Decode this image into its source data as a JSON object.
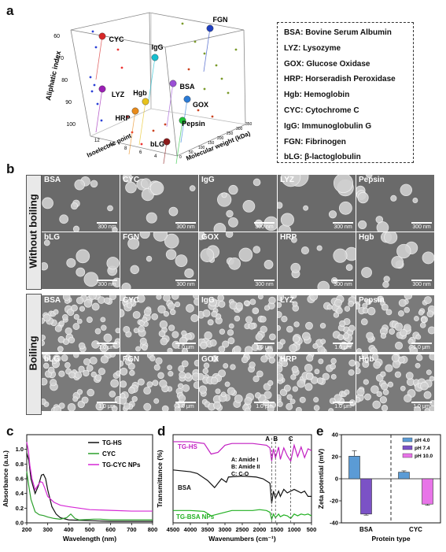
{
  "panel_letters": {
    "a": "a",
    "b": "b",
    "c": "c",
    "d": "d",
    "e": "e"
  },
  "panel_a": {
    "y_axis_label": "Aliphatic index",
    "x_axis_label": "Isoelectric point",
    "z_axis_label": "Molecular weight (kDa)",
    "y_ticks": [
      "60",
      "70",
      "80",
      "90",
      "100"
    ],
    "x_ticks": [
      "12",
      "10",
      "8",
      "6",
      "4"
    ],
    "z_ticks": [
      "0",
      "50",
      "100",
      "150",
      "200",
      "250",
      "300",
      "350"
    ],
    "proteins": [
      {
        "label": "CYC",
        "color": "#d62728"
      },
      {
        "label": "IgG",
        "color": "#17becf"
      },
      {
        "label": "FGN",
        "color": "#1f3fbf"
      },
      {
        "label": "LYZ",
        "color": "#9b1fb5"
      },
      {
        "label": "BSA",
        "color": "#9b4fd6"
      },
      {
        "label": "Hgb",
        "color": "#e8c21a"
      },
      {
        "label": "HRP",
        "color": "#e88a1a"
      },
      {
        "label": "GOX",
        "color": "#2b7bd6"
      },
      {
        "label": "Pepsin",
        "color": "#22c43a"
      },
      {
        "label": "bLG",
        "color": "#8b1a1a"
      }
    ]
  },
  "legend": [
    "BSA: Bovine Serum Albumin",
    "LYZ: Lysozyme",
    "GOX: Glucose Oxidase",
    "HRP: Horseradish Peroxidase",
    "Hgb: Hemoglobin",
    "CYC: Cytochrome C",
    "IgG: Immunoglobulin G",
    "FGN: Fibrinogen",
    "bLG: β-lactoglobulin"
  ],
  "panel_b": {
    "group_without": "Without boiling",
    "group_boiling": "Boiling",
    "without_row1": [
      {
        "name": "BSA",
        "scale": "300 nm"
      },
      {
        "name": "CYC",
        "scale": "300 nm"
      },
      {
        "name": "IgG",
        "scale": "300 nm"
      },
      {
        "name": "LYZ",
        "scale": "300 nm"
      },
      {
        "name": "Pepsin",
        "scale": "300 nm"
      }
    ],
    "without_row2": [
      {
        "name": "bLG",
        "scale": "300 nm"
      },
      {
        "name": "FGN",
        "scale": "300 nm"
      },
      {
        "name": "GOX",
        "scale": "300 nm"
      },
      {
        "name": "HRP",
        "scale": "300 nm"
      },
      {
        "name": "Hgb",
        "scale": "300 nm"
      }
    ],
    "boiling_row1": [
      {
        "name": "BSA",
        "scale": "1.0 μm"
      },
      {
        "name": "CYC",
        "scale": "1.0 μm"
      },
      {
        "name": "IgG",
        "scale": "1.0 μm"
      },
      {
        "name": "LYZ",
        "scale": "1.0 μm"
      },
      {
        "name": "Pepsin",
        "scale": "1.0 μm"
      }
    ],
    "boiling_row2": [
      {
        "name": "bLG",
        "scale": "1.0 μm"
      },
      {
        "name": "FGN",
        "scale": "1.0 μm"
      },
      {
        "name": "GOX",
        "scale": "1.0 μm"
      },
      {
        "name": "HRP",
        "scale": "1.0 μm"
      },
      {
        "name": "Hgb",
        "scale": "1.0 μm"
      }
    ]
  },
  "chart_data": [
    {
      "id": "c",
      "type": "line",
      "xlabel": "Wavelength (nm)",
      "ylabel": "Absorbance (a.u.)",
      "xlim": [
        200,
        800
      ],
      "ylim": [
        0,
        1.2
      ],
      "xticks": [
        200,
        300,
        400,
        500,
        600,
        700,
        800
      ],
      "yticks": [
        0.0,
        0.2,
        0.4,
        0.6,
        0.8,
        1.0
      ],
      "series": [
        {
          "name": "TG-HS",
          "color": "#111111",
          "x": [
            200,
            210,
            220,
            240,
            255,
            270,
            280,
            290,
            300,
            320,
            340,
            360,
            400,
            500,
            600,
            700,
            800
          ],
          "y": [
            0.95,
            0.85,
            0.6,
            0.4,
            0.5,
            0.65,
            0.66,
            0.6,
            0.45,
            0.22,
            0.12,
            0.07,
            0.04,
            0.03,
            0.02,
            0.02,
            0.02
          ]
        },
        {
          "name": "CYC",
          "color": "#2ca02c",
          "x": [
            200,
            210,
            220,
            240,
            260,
            280,
            300,
            330,
            360,
            390,
            410,
            430,
            450,
            520,
            550,
            600,
            700,
            800
          ],
          "y": [
            0.7,
            0.5,
            0.32,
            0.15,
            0.11,
            0.1,
            0.08,
            0.06,
            0.05,
            0.07,
            0.12,
            0.06,
            0.04,
            0.05,
            0.05,
            0.04,
            0.04,
            0.04
          ]
        },
        {
          "name": "TG-CYC NPs",
          "color": "#d628d6",
          "x": [
            200,
            208,
            215,
            225,
            240,
            255,
            265,
            275,
            285,
            300,
            330,
            360,
            400,
            450,
            500,
            600,
            700,
            800
          ],
          "y": [
            1.1,
            0.98,
            0.78,
            0.6,
            0.45,
            0.52,
            0.56,
            0.55,
            0.48,
            0.36,
            0.28,
            0.24,
            0.22,
            0.2,
            0.18,
            0.17,
            0.16,
            0.16
          ]
        }
      ]
    },
    {
      "id": "d",
      "type": "line",
      "xlabel": "Wavenumbers (cm⁻¹)",
      "ylabel": "Transmittance (%)",
      "xlim": [
        4500,
        500
      ],
      "xticks": [
        4500,
        4000,
        3500,
        3000,
        2500,
        2000,
        1500,
        1000,
        500
      ],
      "annotations": {
        "A": "A",
        "B": "B",
        "C": "C",
        "note_a": "A: Amide I",
        "note_b": "B: Amide II",
        "note_c": "C: C-O"
      },
      "marker_lines": [
        1650,
        1540,
        1100
      ],
      "series": [
        {
          "name": "TG-HS",
          "color": "#c21fc2",
          "x": [
            4500,
            4000,
            3600,
            3400,
            3200,
            3000,
            2800,
            2500,
            2200,
            2000,
            1800,
            1700,
            1650,
            1600,
            1540,
            1450,
            1400,
            1300,
            1200,
            1100,
            1000,
            900,
            800,
            700,
            600,
            500
          ],
          "y": [
            0.92,
            0.92,
            0.9,
            0.78,
            0.8,
            0.88,
            0.9,
            0.9,
            0.9,
            0.89,
            0.88,
            0.85,
            0.7,
            0.84,
            0.74,
            0.86,
            0.72,
            0.85,
            0.76,
            0.7,
            0.88,
            0.75,
            0.86,
            0.74,
            0.84,
            0.82
          ]
        },
        {
          "name": "BSA",
          "color": "#111111",
          "x": [
            4500,
            4000,
            3800,
            3500,
            3300,
            3100,
            2960,
            2900,
            2500,
            2100,
            1900,
            1700,
            1650,
            1600,
            1540,
            1450,
            1400,
            1300,
            1200,
            1100,
            1000,
            900,
            800,
            700,
            600,
            500
          ],
          "y": [
            0.6,
            0.58,
            0.56,
            0.48,
            0.4,
            0.5,
            0.46,
            0.52,
            0.53,
            0.52,
            0.5,
            0.45,
            0.22,
            0.36,
            0.28,
            0.36,
            0.3,
            0.38,
            0.34,
            0.36,
            0.38,
            0.36,
            0.34,
            0.36,
            0.3,
            0.3
          ]
        },
        {
          "name": "TG-BSA NPs",
          "color": "#22b022",
          "x": [
            4500,
            4000,
            3600,
            3400,
            3200,
            3000,
            2800,
            2500,
            2200,
            2000,
            1800,
            1700,
            1650,
            1600,
            1540,
            1450,
            1400,
            1300,
            1200,
            1100,
            1000,
            900,
            800,
            700,
            600,
            500
          ],
          "y": [
            0.14,
            0.14,
            0.13,
            0.08,
            0.1,
            0.12,
            0.14,
            0.14,
            0.14,
            0.15,
            0.14,
            0.12,
            0.04,
            0.1,
            0.06,
            0.1,
            0.07,
            0.09,
            0.08,
            0.05,
            0.1,
            0.08,
            0.1,
            0.09,
            0.1,
            0.08
          ]
        }
      ]
    },
    {
      "id": "e",
      "type": "bar",
      "xlabel": "Protein type",
      "ylabel": "Zeta potential (mV)",
      "ylim": [
        -40,
        40
      ],
      "yticks": [
        -40,
        -20,
        0,
        20,
        40
      ],
      "categories": [
        "BSA",
        "CYC"
      ],
      "series": [
        {
          "name": "pH 4.0",
          "color": "#5b9bd5",
          "values": [
            20.5,
            6.0
          ],
          "errors": [
            5,
            1.2
          ]
        },
        {
          "name": "pH 7.4",
          "color": "#7b52c6",
          "values": [
            -32.0,
            0
          ],
          "errors": [
            1,
            0
          ]
        },
        {
          "name": "pH 10.0",
          "color": "#e874e8",
          "values": [
            0,
            -23.0
          ],
          "errors": [
            0,
            1
          ]
        }
      ]
    }
  ]
}
